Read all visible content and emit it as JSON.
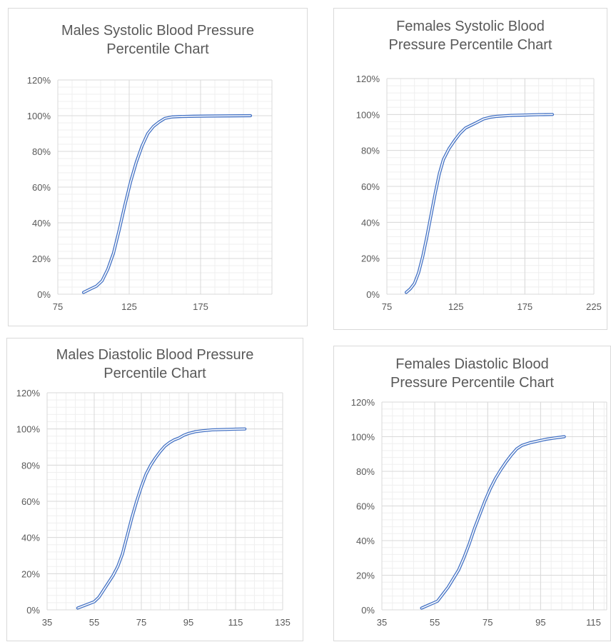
{
  "colors": {
    "line": "#4472c4",
    "major_grid": "#d9d9d9",
    "minor_grid": "#efefef",
    "text": "#595959",
    "border": "#d9d9d9"
  },
  "chart_data": [
    {
      "type": "line",
      "title": "Males Systolic Blood Pressure Percentile Chart",
      "title_lines": [
        "Males Systolic Blood Pressure",
        "Percentile Chart"
      ],
      "xlabel": "",
      "ylabel": "",
      "xlim": [
        75,
        225
      ],
      "ylim": [
        0,
        1.2
      ],
      "x_ticks": [
        75,
        125,
        175
      ],
      "x_tick_labels": [
        "75",
        "125",
        "175"
      ],
      "y_ticks": [
        0,
        0.2,
        0.4,
        0.6,
        0.8,
        1.0,
        1.2
      ],
      "y_tick_labels": [
        "0%",
        "20%",
        "40%",
        "60%",
        "80%",
        "100%",
        "120%"
      ],
      "grid": true,
      "series": [
        {
          "x": [
            93,
            98,
            102,
            106,
            110,
            114,
            118,
            122,
            126,
            130,
            134,
            138,
            142,
            146,
            150,
            155,
            160,
            170,
            180,
            195,
            210
          ],
          "y": [
            0.01,
            0.03,
            0.045,
            0.075,
            0.14,
            0.23,
            0.36,
            0.5,
            0.63,
            0.74,
            0.83,
            0.9,
            0.94,
            0.965,
            0.985,
            0.993,
            0.995,
            0.997,
            0.998,
            0.999,
            1.0
          ]
        }
      ]
    },
    {
      "type": "line",
      "title": "Females Systolic Blood Pressure Percentile Chart",
      "title_lines": [
        "Females Systolic Blood",
        "Pressure Percentile Chart"
      ],
      "xlabel": "",
      "ylabel": "",
      "xlim": [
        75,
        225
      ],
      "ylim": [
        0,
        1.2
      ],
      "x_ticks": [
        75,
        125,
        175,
        225
      ],
      "x_tick_labels": [
        "75",
        "125",
        "175",
        "225"
      ],
      "y_ticks": [
        0,
        0.2,
        0.4,
        0.6,
        0.8,
        1.0,
        1.2
      ],
      "y_tick_labels": [
        "0%",
        "20%",
        "40%",
        "60%",
        "80%",
        "100%",
        "120%"
      ],
      "grid": true,
      "series": [
        {
          "x": [
            89,
            92,
            95,
            98,
            101,
            104,
            107,
            110,
            113,
            116,
            120,
            124,
            128,
            132,
            136,
            140,
            145,
            150,
            155,
            165,
            175,
            185,
            195
          ],
          "y": [
            0.01,
            0.03,
            0.06,
            0.12,
            0.21,
            0.32,
            0.44,
            0.56,
            0.67,
            0.75,
            0.81,
            0.855,
            0.895,
            0.925,
            0.94,
            0.955,
            0.975,
            0.985,
            0.99,
            0.995,
            0.997,
            0.999,
            1.0
          ]
        }
      ]
    },
    {
      "type": "line",
      "title": "Males Diastolic Blood Pressure Percentile Chart",
      "title_lines": [
        "Males Diastolic Blood Pressure",
        "Percentile Chart"
      ],
      "xlabel": "",
      "ylabel": "",
      "xlim": [
        35,
        135
      ],
      "ylim": [
        0,
        1.2
      ],
      "x_ticks": [
        35,
        55,
        75,
        95,
        115,
        135
      ],
      "x_tick_labels": [
        "35",
        "55",
        "75",
        "95",
        "115",
        "135"
      ],
      "y_ticks": [
        0,
        0.2,
        0.4,
        0.6,
        0.8,
        1.0,
        1.2
      ],
      "y_tick_labels": [
        "0%",
        "20%",
        "40%",
        "60%",
        "80%",
        "100%",
        "120%"
      ],
      "grid": true,
      "series": [
        {
          "x": [
            48,
            52,
            55,
            57,
            59,
            61,
            63,
            65,
            67,
            69,
            71,
            73,
            75,
            77,
            79,
            81,
            83,
            85,
            87,
            89,
            91,
            93,
            95,
            98,
            101,
            105,
            110,
            115,
            119
          ],
          "y": [
            0.01,
            0.03,
            0.045,
            0.07,
            0.11,
            0.15,
            0.19,
            0.24,
            0.31,
            0.41,
            0.51,
            0.6,
            0.68,
            0.75,
            0.8,
            0.84,
            0.875,
            0.905,
            0.925,
            0.94,
            0.95,
            0.965,
            0.975,
            0.985,
            0.99,
            0.995,
            0.997,
            0.999,
            1.0
          ]
        }
      ]
    },
    {
      "type": "line",
      "title": "Females Diastolic Blood Pressure Percentile Chart",
      "title_lines": [
        "Females Diastolic Blood",
        "Pressure Percentile Chart"
      ],
      "xlabel": "",
      "ylabel": "",
      "xlim": [
        35,
        120
      ],
      "ylim": [
        0,
        1.2
      ],
      "x_ticks": [
        35,
        55,
        75,
        95,
        115
      ],
      "x_tick_labels": [
        "35",
        "55",
        "75",
        "95",
        "115"
      ],
      "y_ticks": [
        0,
        0.2,
        0.4,
        0.6,
        0.8,
        1.0,
        1.2
      ],
      "y_tick_labels": [
        "0%",
        "20%",
        "40%",
        "60%",
        "80%",
        "100%",
        "120%"
      ],
      "grid": true,
      "series": [
        {
          "x": [
            50,
            53,
            56,
            58,
            60,
            62,
            64,
            66,
            68,
            70,
            72,
            74,
            76,
            78,
            80,
            82,
            84,
            86,
            88,
            91,
            94,
            97,
            100,
            104
          ],
          "y": [
            0.01,
            0.03,
            0.05,
            0.09,
            0.13,
            0.18,
            0.23,
            0.3,
            0.38,
            0.47,
            0.55,
            0.63,
            0.7,
            0.76,
            0.81,
            0.855,
            0.895,
            0.93,
            0.95,
            0.965,
            0.975,
            0.985,
            0.992,
            1.0
          ]
        }
      ]
    }
  ]
}
